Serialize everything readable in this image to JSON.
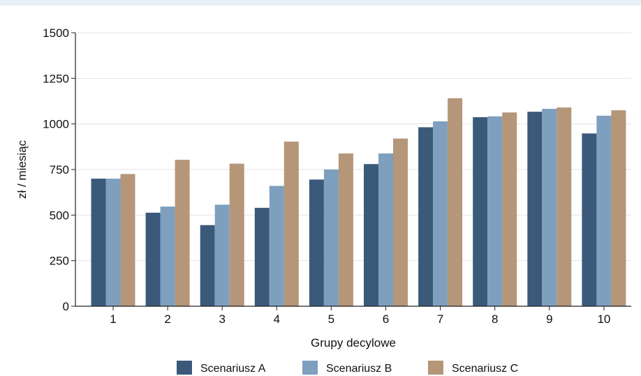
{
  "chart_data": {
    "type": "bar",
    "categories": [
      "1",
      "2",
      "3",
      "4",
      "5",
      "6",
      "7",
      "8",
      "9",
      "10"
    ],
    "series": [
      {
        "name": "Scenariusz A",
        "color": "#3b5a7a",
        "values": [
          700,
          513,
          445,
          540,
          695,
          780,
          982,
          1037,
          1067,
          948
        ]
      },
      {
        "name": "Scenariusz B",
        "color": "#7e9fbe",
        "values": [
          700,
          547,
          557,
          660,
          750,
          838,
          1014,
          1042,
          1083,
          1045
        ]
      },
      {
        "name": "Scenariusz C",
        "color": "#b59679",
        "values": [
          725,
          803,
          782,
          903,
          838,
          920,
          1141,
          1063,
          1090,
          1075
        ]
      }
    ],
    "title": "",
    "xlabel": "Grupy decylowe",
    "ylabel": "zł / miesiąc",
    "ylim": [
      0,
      1500
    ],
    "yticks": [
      0,
      250,
      500,
      750,
      1000,
      1250,
      1500
    ],
    "grid": true,
    "legend_position": "bottom"
  }
}
